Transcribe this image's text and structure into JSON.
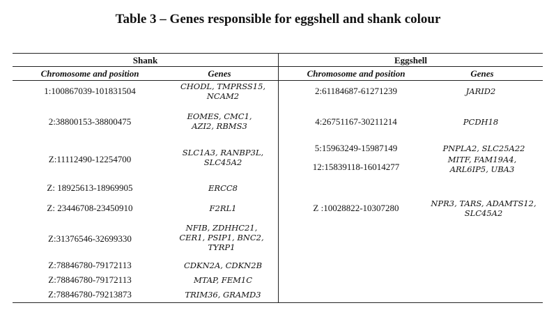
{
  "title": "Table 3 – Genes responsible for eggshell and shank colour",
  "shank": {
    "header": "Shank",
    "col_position": "Chromosome and position",
    "col_genes": "Genes",
    "rows": [
      {
        "position": "1:100867039-101831504",
        "genes": "CHODL, TMPRSS15, NCAM2"
      },
      {
        "position": "2:38800153-38800475",
        "genes": "EOMES, CMC1, AZI2, RBMS3"
      },
      {
        "position": "Z:11112490-12254700",
        "genes": "SLC1A3, RANBP3L, SLC45A2"
      },
      {
        "position": "Z: 18925613-18969905",
        "genes": "ERCC8"
      },
      {
        "position": "Z: 23446708-23450910",
        "genes": "F2RL1"
      },
      {
        "position": "Z:31376546-32699330",
        "genes": "NFIB, ZDHHC21, CER1, PSIP1, BNC2, TYRP1"
      },
      {
        "position": "Z:78846780-79172113",
        "genes": "CDKN2A, CDKN2B"
      },
      {
        "position": "Z:78846780-79172113",
        "genes": "MTAP, FEM1C"
      },
      {
        "position": "Z:78846780-79213873",
        "genes": "TRIM36, GRAMD3"
      }
    ]
  },
  "eggshell": {
    "header": "Eggshell",
    "col_position": "Chromosome and position",
    "col_genes": "Genes",
    "rows": [
      {
        "position": "2:61184687-61271239",
        "genes": "JARID2"
      },
      {
        "position": "4:26751167-30211214",
        "genes": "PCDH18"
      },
      {
        "position": "5:15963249-15987149",
        "genes": "PNPLA2, SLC25A22"
      },
      {
        "position": "12:15839118-16014277",
        "genes": "MITF, FAM19A4, ARL6IP5, UBA3"
      },
      {
        "position": "Z :10028822-10307280",
        "genes": "NPR3, TARS, ADAMTS12, SLC45A2"
      }
    ]
  }
}
